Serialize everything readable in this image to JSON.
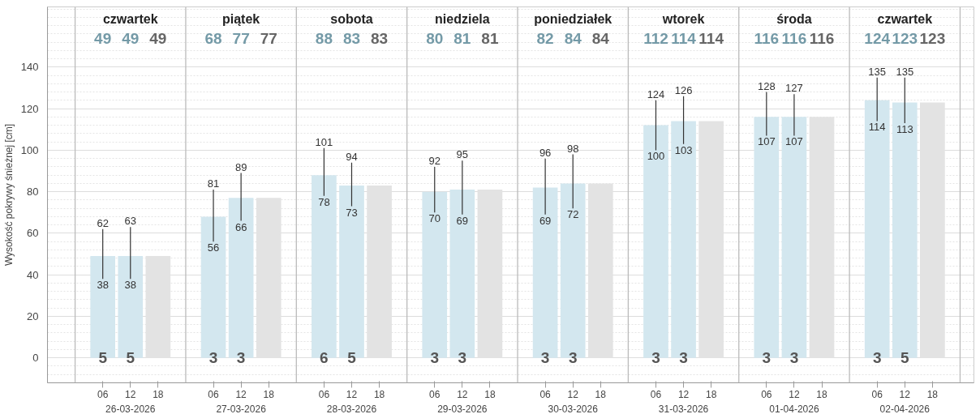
{
  "chart_data": {
    "type": "bar",
    "ylabel": "Wysokość pokrywy śnieżnej [cm]",
    "series": [
      {
        "color": "#d3e7ef",
        "x": [
          "2026-03-26T06:00",
          "2026-03-27T06:00",
          "2026-03-28T06:00",
          "2026-03-29T06:00",
          "2026-03-30T06:00",
          "2026-03-31T06:00",
          "2026-04-01T06:00",
          "2026-04-02T06:00"
        ],
        "values": [
          49,
          68,
          88,
          80,
          82,
          112,
          116,
          124
        ],
        "errors": [
          [
            38,
            62
          ],
          [
            56,
            81
          ],
          [
            78,
            101
          ],
          [
            70,
            92
          ],
          [
            69,
            96
          ],
          [
            100,
            124
          ],
          [
            107,
            128
          ],
          [
            114,
            135
          ]
        ]
      },
      {
        "color": "#d3e7ef",
        "x": [
          "2026-03-26T12:00",
          "2026-03-27T12:00",
          "2026-03-28T12:00",
          "2026-03-29T12:00",
          "2026-03-30T12:00",
          "2026-03-31T12:00",
          "2026-04-01T12:00",
          "2026-04-02T12:00"
        ],
        "values": [
          49,
          77,
          83,
          81,
          84,
          114,
          116,
          123
        ],
        "errors": [
          [
            38,
            63
          ],
          [
            66,
            89
          ],
          [
            73,
            94
          ],
          [
            69,
            95
          ],
          [
            72,
            98
          ],
          [
            103,
            126
          ],
          [
            107,
            127
          ],
          [
            113,
            135
          ]
        ]
      },
      {
        "color": "#e3e3e3",
        "x": [
          "2026-03-26T18:00",
          "2026-03-27T18:00",
          "2026-03-28T18:00",
          "2026-03-29T18:00",
          "2026-03-30T18:00",
          "2026-03-31T18:00",
          "2026-04-01T18:00",
          "2026-04-02T18:00"
        ],
        "values": [
          49,
          77,
          83,
          81,
          84,
          114,
          116,
          123
        ]
      }
    ],
    "xlim": [
      "2026-03-25T18:00",
      "2026-04-03T03:00"
    ],
    "xticks": [
      {
        "value": "2026-03-26T06:00",
        "label": "06"
      },
      {
        "value": "2026-03-26T12:00",
        "label": "12"
      },
      {
        "value": "2026-03-26T18:00",
        "label": "18"
      },
      {
        "value": "2026-03-27T06:00",
        "label": "06"
      },
      {
        "value": "2026-03-27T12:00",
        "label": "12"
      },
      {
        "value": "2026-03-27T18:00",
        "label": "18"
      },
      {
        "value": "2026-03-28T06:00",
        "label": "06"
      },
      {
        "value": "2026-03-28T12:00",
        "label": "12"
      },
      {
        "value": "2026-03-28T18:00",
        "label": "18"
      },
      {
        "value": "2026-03-29T06:00",
        "label": "06"
      },
      {
        "value": "2026-03-29T12:00",
        "label": "12"
      },
      {
        "value": "2026-03-29T18:00",
        "label": "18"
      },
      {
        "value": "2026-03-30T06:00",
        "label": "06"
      },
      {
        "value": "2026-03-30T12:00",
        "label": "12"
      },
      {
        "value": "2026-03-30T18:00",
        "label": "18"
      },
      {
        "value": "2026-03-31T06:00",
        "label": "06"
      },
      {
        "value": "2026-03-31T12:00",
        "label": "12"
      },
      {
        "value": "2026-03-31T18:00",
        "label": "18"
      },
      {
        "value": "2026-04-01T06:00",
        "label": "06"
      },
      {
        "value": "2026-04-01T12:00",
        "label": "12"
      },
      {
        "value": "2026-04-01T18:00",
        "label": "18"
      },
      {
        "value": "2026-04-02T06:00",
        "label": "06"
      },
      {
        "value": "2026-04-02T12:00",
        "label": "12"
      },
      {
        "value": "2026-04-02T18:00",
        "label": "18"
      }
    ],
    "ylim": [
      -12,
      169
    ],
    "yticks": [
      0,
      20,
      40,
      60,
      80,
      100,
      120,
      140
    ],
    "grid": "y",
    "ref_lines": [
      {
        "axis": "x",
        "value": "2026-03-26T00:00",
        "color": "#bbbbbb"
      },
      {
        "axis": "x",
        "value": "2026-03-27T00:00",
        "color": "#bbbbbb"
      },
      {
        "axis": "x",
        "value": "2026-03-28T00:00",
        "color": "#bbbbbb"
      },
      {
        "axis": "x",
        "value": "2026-03-29T00:00",
        "color": "#bbbbbb"
      },
      {
        "axis": "x",
        "value": "2026-03-30T00:00",
        "color": "#bbbbbb"
      },
      {
        "axis": "x",
        "value": "2026-03-31T00:00",
        "color": "#bbbbbb"
      },
      {
        "axis": "x",
        "value": "2026-04-01T00:00",
        "color": "#bbbbbb"
      },
      {
        "axis": "x",
        "value": "2026-04-02T00:00",
        "color": "#bbbbbb"
      },
      {
        "axis": "x",
        "value": "2026-04-03T00:00",
        "color": "#bbbbbb"
      }
    ],
    "annotations": [
      "czwartek",
      "piątek",
      "sobota",
      "niedziela",
      "poniedziałek",
      "wtorek",
      "środa",
      "czwartek",
      "26-03-2026",
      "27-03-2026",
      "28-03-2026",
      "29-03-2026",
      "30-03-2026",
      "31-03-2026",
      "01-04-2026",
      "02-04-2026",
      "49",
      "49",
      "49",
      "68",
      "77",
      "77",
      "88",
      "83",
      "83",
      "80",
      "81",
      "81",
      "82",
      "84",
      "84",
      "112",
      "114",
      "114",
      "116",
      "116",
      "116",
      "124",
      "123",
      "123",
      {
        "text": "62",
        "x": "2026-03-26T06:00",
        "y": 62
      },
      {
        "text": "38",
        "x": "2026-03-26T06:00",
        "y": 38
      },
      {
        "text": "63",
        "x": "2026-03-26T12:00",
        "y": 63
      },
      {
        "text": "38",
        "x": "2026-03-26T12:00",
        "y": 38
      },
      {
        "text": "81",
        "x": "2026-03-27T06:00",
        "y": 81
      },
      {
        "text": "56",
        "x": "2026-03-27T06:00",
        "y": 56
      },
      {
        "text": "89",
        "x": "2026-03-27T12:00",
        "y": 89
      },
      {
        "text": "66",
        "x": "2026-03-27T12:00",
        "y": 66
      },
      {
        "text": "101",
        "x": "2026-03-28T06:00",
        "y": 101
      },
      {
        "text": "78",
        "x": "2026-03-28T06:00",
        "y": 78
      },
      {
        "text": "94",
        "x": "2026-03-28T12:00",
        "y": 94
      },
      {
        "text": "73",
        "x": "2026-03-28T12:00",
        "y": 73
      },
      {
        "text": "92",
        "x": "2026-03-29T06:00",
        "y": 92
      },
      {
        "text": "70",
        "x": "2026-03-29T06:00",
        "y": 70
      },
      {
        "text": "95",
        "x": "2026-03-29T12:00",
        "y": 95
      },
      {
        "text": "69",
        "x": "2026-03-29T12:00",
        "y": 69
      },
      {
        "text": "96",
        "x": "2026-03-30T06:00",
        "y": 96
      },
      {
        "text": "69",
        "x": "2026-03-30T06:00",
        "y": 69
      },
      {
        "text": "98",
        "x": "2026-03-30T12:00",
        "y": 98
      },
      {
        "text": "72",
        "x": "2026-03-30T12:00",
        "y": 72
      },
      {
        "text": "124",
        "x": "2026-03-31T06:00",
        "y": 124
      },
      {
        "text": "100",
        "x": "2026-03-31T06:00",
        "y": 100
      },
      {
        "text": "126",
        "x": "2026-03-31T12:00",
        "y": 126
      },
      {
        "text": "103",
        "x": "2026-03-31T12:00",
        "y": 103
      },
      {
        "text": "128",
        "x": "2026-04-01T06:00",
        "y": 128
      },
      {
        "text": "107",
        "x": "2026-04-01T06:00",
        "y": 107
      },
      {
        "text": "127",
        "x": "2026-04-01T12:00",
        "y": 127
      },
      {
        "text": "107",
        "x": "2026-04-01T12:00",
        "y": 107
      },
      {
        "text": "135",
        "x": "2026-04-02T06:00",
        "y": 135
      },
      {
        "text": "114",
        "x": "2026-04-02T06:00",
        "y": 114
      },
      {
        "text": "135",
        "x": "2026-04-02T12:00",
        "y": 135
      },
      {
        "text": "113",
        "x": "2026-04-02T12:00",
        "y": 113
      },
      {
        "text": "5",
        "x": "2026-03-26T06:00",
        "y": 0
      },
      {
        "text": "5",
        "x": "2026-03-26T12:00",
        "y": 0
      },
      {
        "text": "3",
        "x": "2026-03-27T06:00",
        "y": 0
      },
      {
        "text": "3",
        "x": "2026-03-27T12:00",
        "y": 0
      },
      {
        "text": "6",
        "x": "2026-03-28T06:00",
        "y": 0
      },
      {
        "text": "5",
        "x": "2026-03-28T12:00",
        "y": 0
      },
      {
        "text": "3",
        "x": "2026-03-29T06:00",
        "y": 0
      },
      {
        "text": "3",
        "x": "2026-03-29T12:00",
        "y": 0
      },
      {
        "text": "3",
        "x": "2026-03-30T06:00",
        "y": 0
      },
      {
        "text": "3",
        "x": "2026-03-30T12:00",
        "y": 0
      },
      {
        "text": "3",
        "x": "2026-03-31T06:00",
        "y": 0
      },
      {
        "text": "3",
        "x": "2026-03-31T12:00",
        "y": 0
      },
      {
        "text": "3",
        "x": "2026-04-01T06:00",
        "y": 0
      },
      {
        "text": "3",
        "x": "2026-04-01T12:00",
        "y": 0
      },
      {
        "text": "3",
        "x": "2026-04-02T06:00",
        "y": 0
      },
      {
        "text": "5",
        "x": "2026-04-02T12:00",
        "y": 0
      }
    ]
  }
}
